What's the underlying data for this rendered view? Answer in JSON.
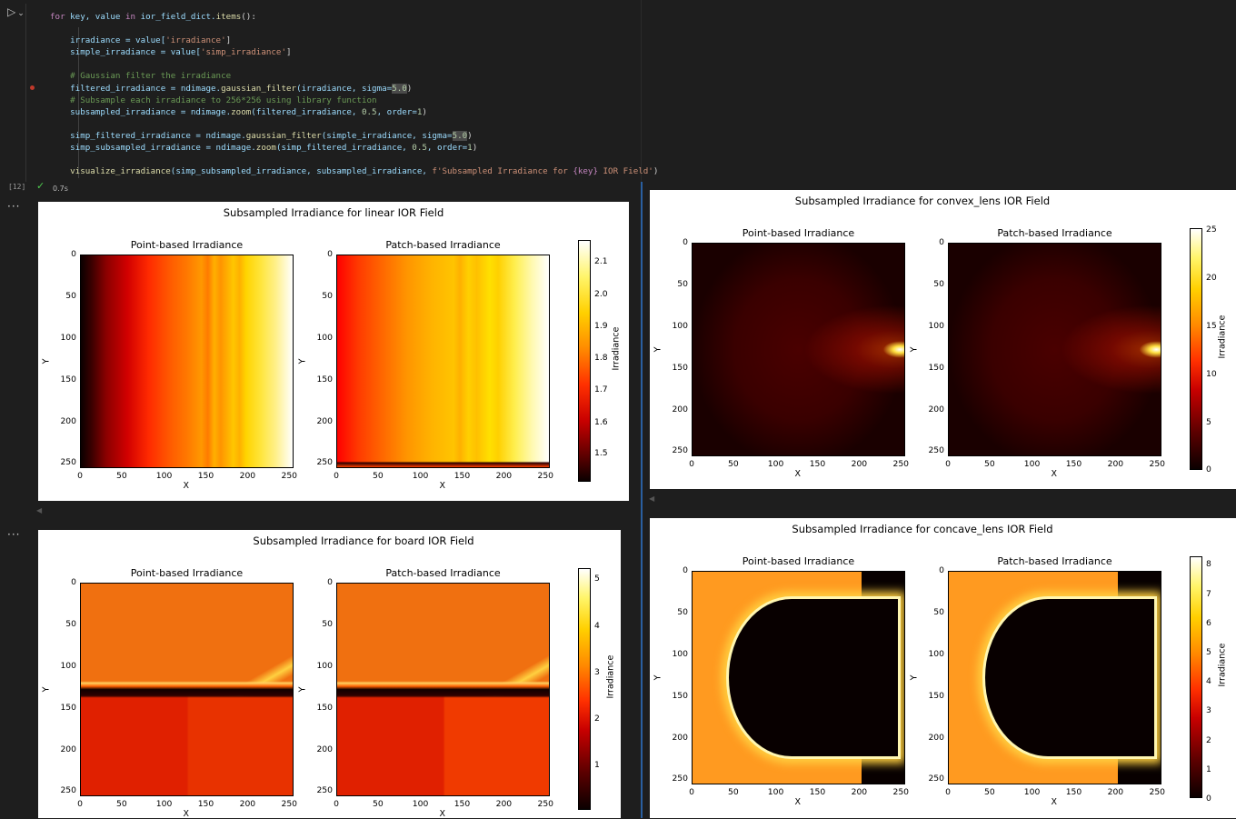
{
  "notebook": {
    "run_icon": "▷",
    "run_menu_icon": "⌄",
    "exec_count": "[12]",
    "status_icon": "✓",
    "exec_time": "0.7s",
    "output_menu": "···",
    "code": {
      "l1a": "for",
      "l1b": " key, value ",
      "l1c": "in",
      "l1d": " ior_field_dict.",
      "l1e": "items",
      "l1f": "():",
      "l3a": "    irradiance = value[",
      "l3b": "'irradiance'",
      "l3c": "]",
      "l4a": "    simple_irradiance = value[",
      "l4b": "'simp_irradiance'",
      "l4c": "]",
      "l6": "    # Gaussian filter the irradiance",
      "l7a": "    filtered_irradiance = ndimage.",
      "l7b": "gaussian_filter",
      "l7c": "(irradiance, sigma=",
      "l7d": "5.0",
      "l7e": ")",
      "l8": "    # Subsample each irradiance to 256*256 using library function",
      "l9a": "    subsampled_irradiance = ndimage.",
      "l9b": "zoom",
      "l9c": "(filtered_irradiance, ",
      "l9d": "0.5",
      "l9e": ", order=",
      "l9f": "1",
      "l9g": ")",
      "l11a": "    simp_filtered_irradiance = ndimage.",
      "l11b": "gaussian_filter",
      "l11c": "(simple_irradiance, sigma=",
      "l11d": "5.0",
      "l11e": ")",
      "l12a": "    simp_subsampled_irradiance = ndimage.",
      "l12b": "zoom",
      "l12c": "(simp_filtered_irradiance, ",
      "l12d": "0.5",
      "l12e": ", order=",
      "l12f": "1",
      "l12g": ")",
      "l14a": "    ",
      "l14b": "visualize_irradiance",
      "l14c": "(simp_subsampled_irradiance, subsampled_irradiance, ",
      "l14d": "f'Subsampled Irradiance for ",
      "l14e": "{key}",
      "l14f": " IOR Field'",
      "l14g": ")"
    }
  },
  "labels": {
    "point": "Point-based Irradiance",
    "patch": "Patch-based Irradiance",
    "x": "X",
    "y": "Y",
    "cbar": "Irradiance",
    "axis_ticks": [
      "0",
      "50",
      "100",
      "150",
      "200",
      "250"
    ]
  },
  "figures": [
    {
      "title": "Subsampled Irradiance for linear IOR Field",
      "cbar_ticks": [
        "2.1",
        "2.0",
        "1.9",
        "1.8",
        "1.7",
        "1.6",
        "1.5"
      ]
    },
    {
      "title": "Subsampled Irradiance for convex_lens IOR Field",
      "cbar_ticks": [
        "25",
        "20",
        "15",
        "10",
        "5",
        "0"
      ]
    },
    {
      "title": "Subsampled Irradiance for board IOR Field",
      "cbar_ticks": [
        "5",
        "4",
        "3",
        "2",
        "1"
      ]
    },
    {
      "title": "Subsampled Irradiance for concave_lens IOR Field",
      "cbar_ticks": [
        "8",
        "7",
        "6",
        "5",
        "4",
        "3",
        "2",
        "1",
        "0"
      ]
    }
  ],
  "colors": {
    "background": "#1e1e1e",
    "figure_bg": "#ffffff",
    "colormap": "hot",
    "divider": "#2a5fa0"
  }
}
